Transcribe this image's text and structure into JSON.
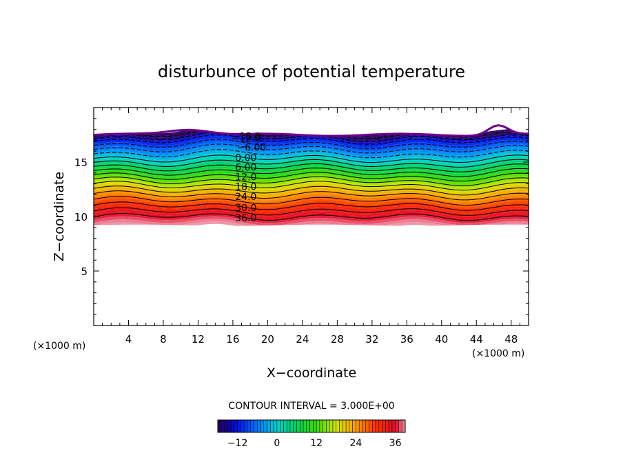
{
  "chart_data": {
    "type": "contour",
    "title": "disturbunce of potential temperature",
    "xlabel": "X−coordinate",
    "ylabel": "Z−coordinate",
    "x_unit": "(×1000 m)",
    "z_unit": "(×1000 m)",
    "xlim": [
      0,
      50
    ],
    "ylim": [
      0,
      20
    ],
    "x_ticks": [
      4,
      8,
      12,
      16,
      20,
      24,
      28,
      32,
      36,
      40,
      44,
      48
    ],
    "y_ticks": [
      5,
      10,
      15
    ],
    "contour_interval_text": "CONTOUR INTERVAL = 3.000E+00",
    "contour_interval": 3.0,
    "contour_labels": [
      "−18.0",
      "−12.0",
      "−6.00",
      "0.00",
      "6.00",
      "12.0",
      "18.0",
      "24.0",
      "30.0",
      "36.0"
    ],
    "colorbar": {
      "range": [
        -18,
        39
      ],
      "ticks": [
        -12,
        0,
        12,
        24,
        36
      ],
      "tick_labels": [
        "−12",
        "0",
        "12",
        "24",
        "36"
      ]
    },
    "field": {
      "lower_boundary_z": 9.2,
      "top_boundary_z": 17.5,
      "level_heights_at_x25": [
        {
          "value": -18,
          "z": 17.5
        },
        {
          "value": -12,
          "z": 17.0
        },
        {
          "value": -6,
          "z": 16.2
        },
        {
          "value": 0,
          "z": 15.3
        },
        {
          "value": 6,
          "z": 14.5
        },
        {
          "value": 12,
          "z": 13.7
        },
        {
          "value": 18,
          "z": 12.9
        },
        {
          "value": 24,
          "z": 12.0
        },
        {
          "value": 30,
          "z": 11.0
        },
        {
          "value": 36,
          "z": 10.0
        }
      ]
    }
  }
}
